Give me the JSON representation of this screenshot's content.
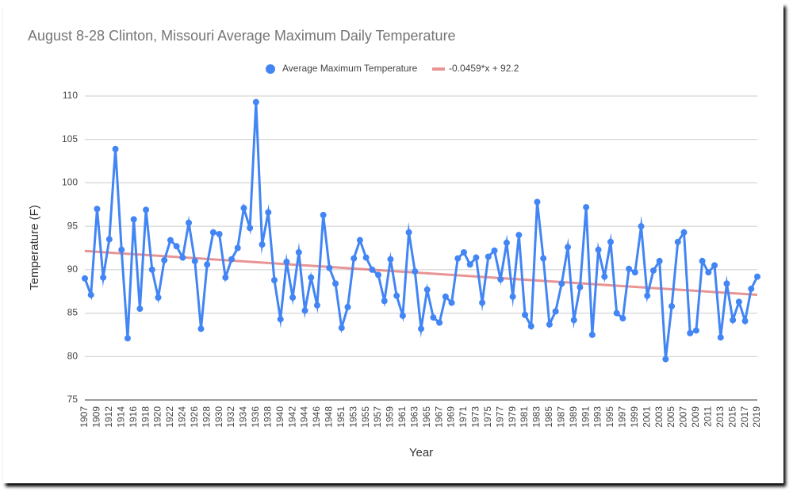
{
  "chart_data": {
    "type": "line",
    "title": "August 8-28 Clinton, Missouri Average Maximum Daily Temperature",
    "x_label": "Year",
    "y_label": "Temperature (F)",
    "categories": [
      "1907",
      null,
      "1909",
      null,
      "1912",
      null,
      "1914",
      null,
      "1916",
      null,
      "1918",
      null,
      "1920",
      null,
      "1922",
      null,
      "1924",
      null,
      "1926",
      null,
      "1928",
      null,
      "1930",
      null,
      "1932",
      null,
      "1934",
      null,
      "1936",
      null,
      "1938",
      null,
      "1940",
      null,
      "1942",
      null,
      "1944",
      null,
      "1946",
      null,
      "1948",
      null,
      "1951",
      null,
      "1953",
      null,
      "1955",
      null,
      "1957",
      null,
      "1959",
      null,
      "1961",
      null,
      "1963",
      null,
      "1965",
      null,
      "1967",
      null,
      "1969",
      null,
      "1971",
      null,
      "1973",
      null,
      "1975",
      null,
      "1977",
      null,
      "1979",
      null,
      "1981",
      null,
      "1983",
      null,
      "1985",
      null,
      "1987",
      null,
      "1989",
      null,
      "1991",
      null,
      "1993",
      null,
      "1995",
      null,
      "1997",
      null,
      "1999",
      null,
      "2001",
      null,
      "2003",
      null,
      "2005",
      null,
      "2007",
      null,
      "2009",
      null,
      "2011",
      null,
      "2013",
      null,
      "2015",
      null,
      "2017",
      null,
      "2019"
    ],
    "series": [
      {
        "name": "Average Maximum Temperature",
        "color": "#4285f4",
        "values": [
          89,
          87.1,
          97,
          89.1,
          93.5,
          103.9,
          92.3,
          82.1,
          95.8,
          85.5,
          96.9,
          90,
          86.8,
          91.1,
          93.4,
          92.7,
          91.4,
          95.4,
          91,
          83.2,
          90.6,
          94.3,
          94.1,
          89.1,
          91.2,
          92.5,
          97.1,
          94.8,
          109.3,
          92.9,
          96.6,
          88.8,
          84.3,
          90.9,
          86.8,
          92,
          85.3,
          89.1,
          85.9,
          96.3,
          90.2,
          88.4,
          83.3,
          85.7,
          91.3,
          93.4,
          91.4,
          90,
          89.4,
          86.4,
          91.2,
          87,
          84.7,
          94.3,
          89.8,
          83.2,
          87.7,
          84.5,
          83.9,
          86.9,
          86.2,
          91.3,
          92,
          90.6,
          91.4,
          86.2,
          91.5,
          92.2,
          88.9,
          93.1,
          86.9,
          94,
          84.8,
          83.5,
          97.8,
          91.3,
          83.7,
          85.2,
          88.4,
          92.6,
          84.2,
          88,
          97.2,
          82.5,
          92.3,
          89.2,
          93.2,
          85,
          84.4,
          90.1,
          89.7,
          95,
          87,
          89.9,
          91,
          79.7,
          85.8,
          93.2,
          94.3,
          82.7,
          83,
          91,
          89.7,
          90.5,
          82.2,
          88.4,
          84.2,
          86.3,
          84.1,
          87.8,
          89.2
        ]
      }
    ],
    "trendline": {
      "name": "-0.0459*x + 92.2",
      "slope": -0.0459,
      "intercept": 92.2,
      "color": "#e06666"
    },
    "ylim": [
      75,
      110
    ],
    "yticks": [
      75,
      80,
      85,
      90,
      95,
      100,
      105,
      110
    ],
    "grid": true,
    "legend": "top"
  }
}
